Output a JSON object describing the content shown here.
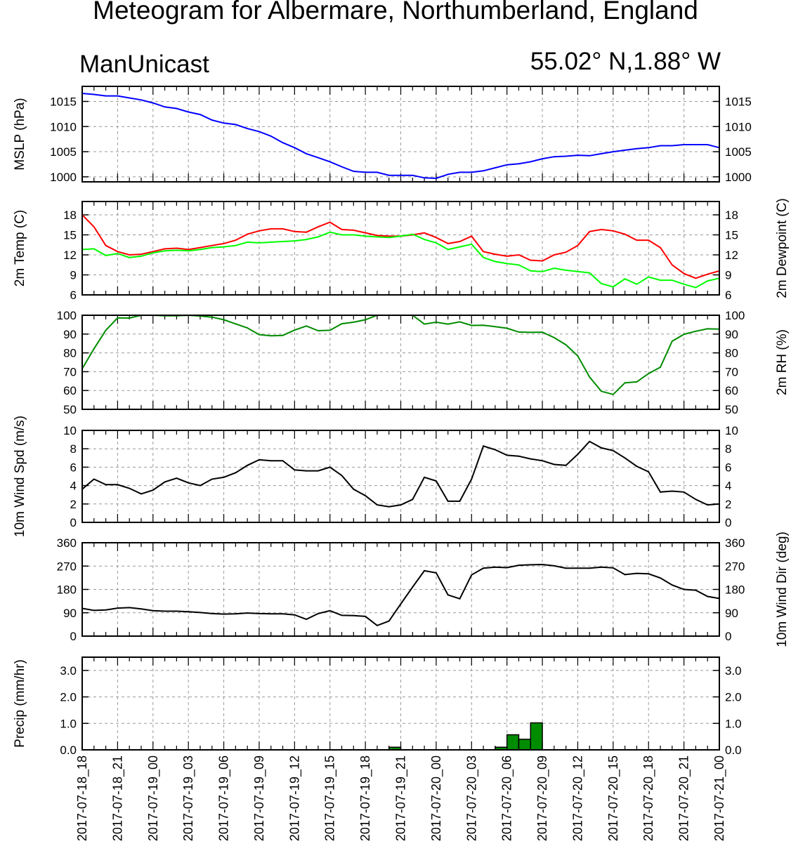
{
  "title": "Meteogram for Albermare, Northumberland, England",
  "model": "ManUnicast",
  "location": "55.02° N,1.88° W",
  "time_labels": [
    "2017-07-18_18",
    "2017-07-18_21",
    "2017-07-19_00",
    "2017-07-19_03",
    "2017-07-19_06",
    "2017-07-19_09",
    "2017-07-19_12",
    "2017-07-19_15",
    "2017-07-19_18",
    "2017-07-19_21",
    "2017-07-20_00",
    "2017-07-20_03",
    "2017-07-20_06",
    "2017-07-20_09",
    "2017-07-20_12",
    "2017-07-20_15",
    "2017-07-20_18",
    "2017-07-20_21",
    "2017-07-21_00"
  ],
  "chart_data": [
    {
      "type": "line",
      "ylabel": "MSLP (hPa)",
      "ylim": [
        999,
        1018
      ],
      "yticks": [
        1000,
        1005,
        1010,
        1015
      ],
      "grid": true,
      "series": [
        {
          "color": "#0000ff",
          "values": [
            1016.6,
            1016.4,
            1016.1,
            1016.1,
            1015.7,
            1015.3,
            1014.7,
            1013.9,
            1013.6,
            1012.9,
            1012.4,
            1011.3,
            1010.7,
            1010.4,
            1009.6,
            1009.0,
            1008.1,
            1006.8,
            1005.8,
            1004.6,
            1003.8,
            1003.0,
            1002.0,
            1001.1,
            1000.9,
            1000.9,
            1000.3,
            1000.3,
            1000.3,
            999.8,
            999.7,
            1000.5,
            1000.9,
            1000.9,
            1001.2,
            1001.8,
            1002.4,
            1002.6,
            1003.0,
            1003.6,
            1004.0,
            1004.1,
            1004.3,
            1004.2,
            1004.6,
            1005.0,
            1005.3,
            1005.6,
            1005.8,
            1006.2,
            1006.2,
            1006.4,
            1006.4,
            1006.4,
            1005.8
          ]
        }
      ]
    },
    {
      "type": "line",
      "ylabel": "2m Temp (C)",
      "ylabel_right": "2m Dewpoint (C)",
      "ylim": [
        6,
        20
      ],
      "yticks": [
        6,
        9,
        12,
        15,
        18
      ],
      "grid": true,
      "series": [
        {
          "color": "#ff0000",
          "values": [
            18.0,
            16.2,
            13.4,
            12.5,
            12.0,
            12.1,
            12.5,
            12.9,
            13.0,
            12.8,
            13.1,
            13.4,
            13.7,
            14.2,
            15.1,
            15.6,
            15.9,
            15.9,
            15.5,
            15.4,
            16.2,
            16.9,
            15.8,
            15.7,
            15.3,
            14.9,
            14.8,
            14.8,
            15.0,
            15.3,
            14.6,
            13.7,
            14.0,
            14.8,
            12.5,
            12.1,
            11.8,
            12.0,
            11.2,
            11.1,
            12.0,
            12.4,
            13.4,
            15.5,
            15.8,
            15.6,
            15.1,
            14.2,
            14.2,
            13.1,
            10.5,
            9.2,
            8.5,
            9.1,
            9.6
          ]
        },
        {
          "color": "#00ff00",
          "values": [
            12.8,
            12.9,
            11.9,
            12.2,
            11.6,
            11.8,
            12.3,
            12.6,
            12.7,
            12.6,
            12.8,
            13.1,
            13.2,
            13.4,
            13.9,
            13.8,
            13.9,
            14.0,
            14.1,
            14.3,
            14.7,
            15.4,
            15.0,
            15.0,
            14.8,
            14.7,
            14.6,
            14.8,
            15.1,
            14.3,
            13.8,
            12.8,
            13.2,
            13.6,
            11.6,
            11.0,
            10.7,
            10.5,
            9.6,
            9.5,
            10.0,
            9.7,
            9.5,
            9.3,
            7.7,
            7.2,
            8.4,
            7.6,
            8.7,
            8.2,
            8.2,
            7.6,
            7.1,
            8.1,
            8.5
          ]
        }
      ]
    },
    {
      "type": "line",
      "ylabel_right": "2m RH (%)",
      "ylim": [
        50,
        100
      ],
      "yticks": [
        50,
        60,
        70,
        80,
        90,
        100
      ],
      "grid": true,
      "series": [
        {
          "color": "#008c00",
          "values": [
            71.6,
            82.2,
            92.0,
            98.6,
            98.5,
            100,
            100,
            99.7,
            99.7,
            100,
            99.6,
            99.0,
            97.6,
            95.4,
            93.3,
            89.7,
            89.1,
            89.3,
            92.1,
            94.3,
            91.8,
            92.0,
            95.5,
            96.3,
            97.6,
            100,
            100,
            100,
            100,
            95.3,
            96.3,
            95.3,
            96.5,
            94.6,
            94.7,
            93.9,
            93.1,
            91.1,
            90.9,
            91.0,
            88.1,
            84.3,
            78.4,
            67.2,
            59.6,
            57.9,
            64.1,
            64.6,
            69.0,
            72.4,
            86.2,
            89.9,
            91.5,
            92.8,
            92.6
          ]
        }
      ]
    },
    {
      "type": "line",
      "ylabel": "10m Wind Spd (m/s)",
      "ylim": [
        0,
        10
      ],
      "yticks": [
        0,
        2,
        4,
        6,
        8,
        10
      ],
      "grid": true,
      "series": [
        {
          "color": "#000000",
          "values": [
            3.6,
            4.7,
            4.1,
            4.1,
            3.7,
            3.1,
            3.5,
            4.4,
            4.8,
            4.3,
            4.0,
            4.7,
            4.9,
            5.4,
            6.2,
            6.8,
            6.7,
            6.7,
            5.7,
            5.6,
            5.6,
            6.0,
            5.1,
            3.6,
            2.9,
            1.9,
            1.7,
            1.9,
            2.5,
            4.9,
            4.5,
            2.3,
            2.3,
            4.7,
            8.3,
            7.9,
            7.3,
            7.2,
            6.9,
            6.7,
            6.3,
            6.2,
            7.4,
            8.8,
            8.1,
            7.8,
            7.0,
            6.1,
            5.5,
            3.3,
            3.4,
            3.3,
            2.5,
            1.9,
            2.0
          ]
        }
      ]
    },
    {
      "type": "line",
      "ylabel_right": "10m Wind Dir (deg)",
      "ylim": [
        0,
        360
      ],
      "yticks": [
        0,
        90,
        180,
        270,
        360
      ],
      "grid": true,
      "series": [
        {
          "color": "#000000",
          "values": [
            107,
            99,
            101,
            108,
            110,
            105,
            98,
            96,
            96,
            94,
            91,
            87,
            85,
            86,
            89,
            87,
            86,
            86,
            82,
            65,
            87,
            98,
            80,
            79,
            76,
            41,
            58,
            124,
            189,
            252,
            244,
            159,
            144,
            236,
            262,
            266,
            264,
            273,
            275,
            276,
            271,
            262,
            262,
            262,
            266,
            263,
            237,
            242,
            240,
            224,
            197,
            180,
            177,
            153,
            145
          ]
        }
      ]
    },
    {
      "type": "bar",
      "ylabel": "Precip (mm/hr)",
      "ylim": [
        0,
        3.5
      ],
      "yticks": [
        0.0,
        1.0,
        2.0,
        3.0
      ],
      "ytick_labels": [
        "0.0",
        "1.0",
        "2.0",
        "3.0"
      ],
      "grid": true,
      "bar_color": "#008c00",
      "bars": [
        {
          "index": 27,
          "value": 0.1
        },
        {
          "index": 36,
          "value": 0.1
        },
        {
          "index": 37,
          "value": 0.57
        },
        {
          "index": 38,
          "value": 0.4
        },
        {
          "index": 39,
          "value": 1.02
        }
      ]
    }
  ]
}
